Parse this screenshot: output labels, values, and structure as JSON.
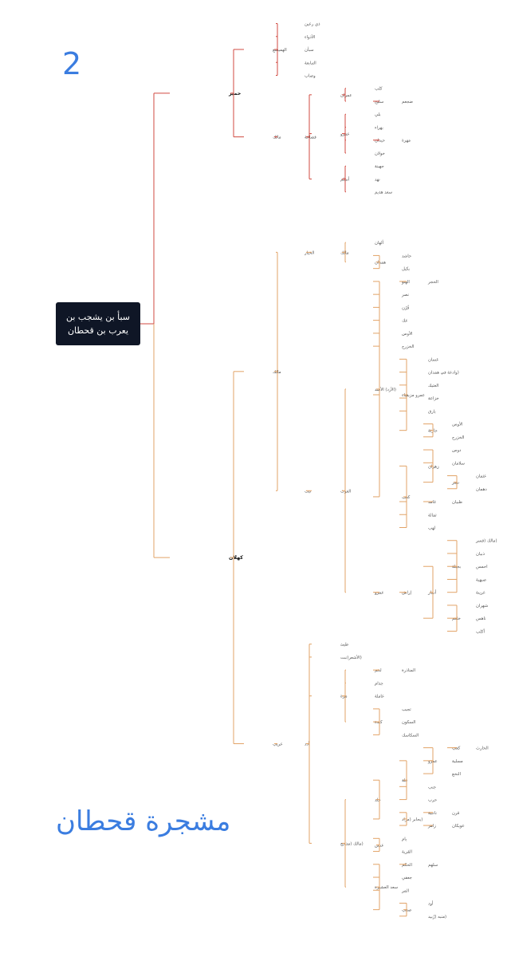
{
  "page_number": "2",
  "title": "مشجرة قحطان",
  "root": {
    "line1": "سبأ بن يشجب بن",
    "line2": "يعرب بن قحطان"
  },
  "colors": {
    "himyar": "#d04a40",
    "kahlan": "#e2a367",
    "title_blue": "#3b7de0",
    "root_box": "#0f1626"
  },
  "tree": [
    {
      "name": "حمير",
      "children": [
        {
          "name": "الهميسع",
          "children": [
            {
              "name": "ذي رعين"
            },
            {
              "name": "الأذواء"
            },
            {
              "name": "سبأن"
            },
            {
              "name": "التبابعة"
            },
            {
              "name": "وصاب"
            }
          ]
        },
        {
          "name": "مالك",
          "children": [
            {
              "name": "قضاعة",
              "children": [
                {
                  "name": "عمران",
                  "children": [
                    {
                      "name": "كلب"
                    },
                    {
                      "name": "سليح",
                      "children": [
                        {
                          "name": "ضجعم"
                        }
                      ]
                    }
                  ]
                },
                {
                  "name": "عمرو",
                  "children": [
                    {
                      "name": "بلي"
                    },
                    {
                      "name": "بهراء"
                    },
                    {
                      "name": "حيدان",
                      "children": [
                        {
                          "name": "مهرة"
                        }
                      ]
                    },
                    {
                      "name": "خولان"
                    }
                  ]
                },
                {
                  "name": "أسلم",
                  "children": [
                    {
                      "name": "جهينة"
                    },
                    {
                      "name": "نهد"
                    },
                    {
                      "name": "سعد هذيم"
                    }
                  ]
                }
              ]
            }
          ]
        }
      ]
    },
    {
      "name": "كهلان",
      "children": [
        {
          "name": "مالك",
          "children": [
            {
              "name": "الخيار",
              "children": [
                {
                  "name": "مالك",
                  "children": [
                    {
                      "name": "ألهان"
                    },
                    {
                      "name": "همدان",
                      "children": [
                        {
                          "name": "حاشد"
                        },
                        {
                          "name": "بكيل"
                        }
                      ]
                    }
                  ]
                }
              ]
            },
            {
              "name": "نبت",
              "children": [
                {
                  "name": "الغوث",
                  "children": [
                    {
                      "name": "(الأزد) الأسد",
                      "children": [
                        {
                          "name": "الهنو",
                          "children": [
                            {
                              "name": "الحجر"
                            }
                          ]
                        },
                        {
                          "name": "نصر"
                        },
                        {
                          "name": "قُرْن"
                        },
                        {
                          "name": "عك"
                        },
                        {
                          "name": "الأوس"
                        },
                        {
                          "name": "الخزرج"
                        },
                        {
                          "name": "عمرو مزيقياء",
                          "children": [
                            {
                              "name": "غسان"
                            },
                            {
                              "name": "(وادعة في همدان"
                            },
                            {
                              "name": "العتيك"
                            },
                            {
                              "name": "خزاعة"
                            },
                            {
                              "name": "بارق"
                            },
                            {
                              "name": "حارثة",
                              "children": [
                                {
                                  "name": "الأوس"
                                },
                                {
                                  "name": "الخزرج"
                                }
                              ]
                            }
                          ]
                        },
                        {
                          "name": "كعب",
                          "children": [
                            {
                              "name": "زهران",
                              "children": [
                                {
                                  "name": "دوس"
                                },
                                {
                                  "name": "سلامان"
                                },
                                {
                                  "name": "نصر",
                                  "children": [
                                    {
                                      "name": "عثمان"
                                    },
                                    {
                                      "name": "دهمان"
                                    }
                                  ]
                                }
                              ]
                            },
                            {
                              "name": "غامد",
                              "children": [
                                {
                                  "name": "ظبيان"
                                }
                              ]
                            },
                            {
                              "name": "ثمالة"
                            },
                            {
                              "name": "لهب"
                            }
                          ]
                        }
                      ]
                    },
                    {
                      "name": "عمرو",
                      "children": [
                        {
                          "name": "إراش",
                          "children": [
                            {
                              "name": "أنمار",
                              "children": [
                                {
                                  "name": "بجيلة",
                                  "children": [
                                    {
                                      "name": "(مالك (قسر"
                                    },
                                    {
                                      "name": "ذبيان"
                                    },
                                    {
                                      "name": "احمس"
                                    },
                                    {
                                      "name": "صبهية"
                                    },
                                    {
                                      "name": "عرينة"
                                    }
                                  ]
                                },
                                {
                                  "name": "خثعم",
                                  "children": [
                                    {
                                      "name": "شهران"
                                    },
                                    {
                                      "name": "ناهس"
                                    },
                                    {
                                      "name": "أكلب"
                                    }
                                  ]
                                }
                              ]
                            }
                          ]
                        }
                      ]
                    }
                  ]
                }
              ]
            }
          ]
        },
        {
          "name": "عريب",
          "children": [
            {
              "name": "أدد",
              "children": [
                {
                  "name": "طيئ"
                },
                {
                  "name": "(الأشعر(نبت"
                },
                {
                  "name": "مرة",
                  "children": [
                    {
                      "name": "لخم",
                      "children": [
                        {
                          "name": "المناذرة"
                        }
                      ]
                    },
                    {
                      "name": "جذام"
                    },
                    {
                      "name": "عاملة"
                    },
                    {
                      "name": "كندة",
                      "children": [
                        {
                          "name": "تجيب"
                        },
                        {
                          "name": "السكون"
                        },
                        {
                          "name": "السكاسك"
                        }
                      ]
                    }
                  ]
                },
                {
                  "name": "(مالك (مذحج",
                  "children": [
                    {
                      "name": "جلد",
                      "children": [
                        {
                          "name": "علة",
                          "children": [
                            {
                              "name": "عمرو",
                              "children": [
                                {
                                  "name": "كعب",
                                  "children": [
                                    {
                                      "name": "الحارث"
                                    }
                                  ]
                                },
                                {
                                  "name": "مسلية"
                                },
                                {
                                  "name": "النخع"
                                }
                              ]
                            },
                            {
                              "name": "جنب"
                            },
                            {
                              "name": "حرب"
                            }
                          ]
                        },
                        {
                          "name": "(يحابر (مراد",
                          "children": [
                            {
                              "name": "ناجية",
                              "children": [
                                {
                                  "name": "قرن"
                                }
                              ]
                            },
                            {
                              "name": "زاهر",
                              "children": [
                                {
                                  "name": "عويكان"
                                }
                              ]
                            }
                          ]
                        }
                      ]
                    },
                    {
                      "name": "عنس",
                      "children": [
                        {
                          "name": "يام"
                        },
                        {
                          "name": "القرية"
                        }
                      ]
                    },
                    {
                      "name": "سعد العشيرة",
                      "children": [
                        {
                          "name": "الحكم",
                          "children": [
                            {
                              "name": "سلهم"
                            }
                          ]
                        },
                        {
                          "name": "جعفي"
                        },
                        {
                          "name": "المر"
                        },
                        {
                          "name": "صعب",
                          "children": [
                            {
                              "name": "أود"
                            },
                            {
                              "name": "(منبه (زُبيد"
                            }
                          ]
                        }
                      ]
                    }
                  ]
                }
              ]
            }
          ]
        }
      ]
    }
  ]
}
